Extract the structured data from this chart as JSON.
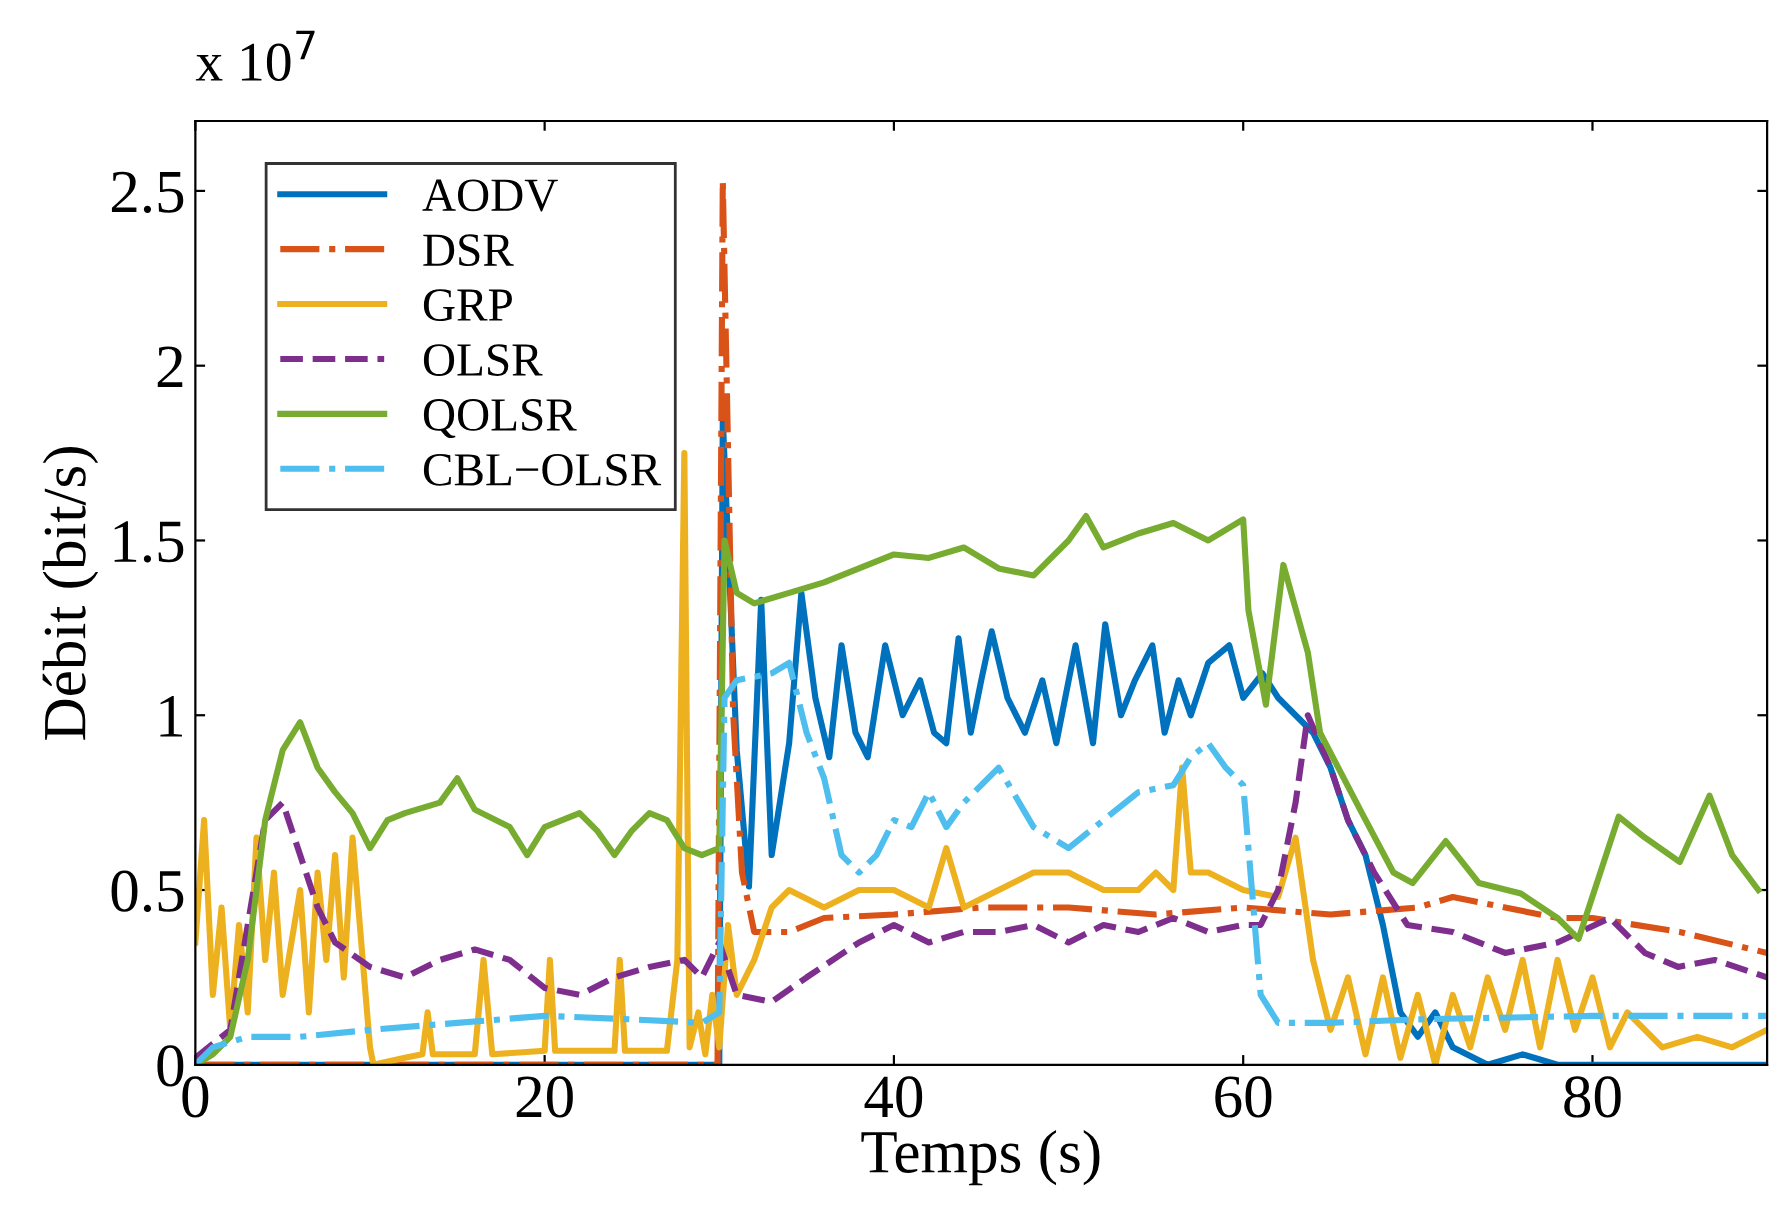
{
  "chart_data": {
    "type": "line",
    "xlabel": "Temps (s)",
    "ylabel": "Débit (bit/s)",
    "annotations": [
      "x 10$^{7}$"
    ],
    "xlim": [
      0,
      90
    ],
    "ylim": [
      0,
      2.7
    ],
    "xticks": [
      0,
      20,
      40,
      60,
      80
    ],
    "yticks": [
      0,
      0.5,
      1,
      1.5,
      2,
      2.5
    ],
    "grid": false,
    "legend": "top left",
    "series": [
      {
        "name": "AODV",
        "color": "#0072bd",
        "line_style": "solid",
        "x": [
          0,
          10,
          20,
          30,
          30.2,
          31,
          31.7,
          32.4,
          33,
          34,
          34.7,
          35.5,
          36.3,
          37,
          37.8,
          38.5,
          39.5,
          40.5,
          41.5,
          42.3,
          43,
          43.7,
          44.4,
          45,
          45.6,
          46.5,
          47.5,
          48.5,
          49.3,
          50.4,
          51.4,
          52.1,
          53,
          53.8,
          54.8,
          55.5,
          56.3,
          57,
          58,
          59.2,
          60,
          61.1,
          62,
          63,
          64,
          65,
          66,
          67,
          68,
          69,
          70,
          71,
          72,
          74,
          76,
          78,
          80,
          85,
          90
        ],
        "values": [
          0,
          0,
          0,
          0,
          1.85,
          0.9,
          0.51,
          1.33,
          0.6,
          0.92,
          1.35,
          1.05,
          0.88,
          1.2,
          0.95,
          0.88,
          1.2,
          1.0,
          1.1,
          0.95,
          0.92,
          1.22,
          0.95,
          1.1,
          1.24,
          1.05,
          0.95,
          1.1,
          0.92,
          1.2,
          0.92,
          1.26,
          1.0,
          1.1,
          1.2,
          0.95,
          1.1,
          1.0,
          1.15,
          1.2,
          1.05,
          1.12,
          1.05,
          1.0,
          0.95,
          0.85,
          0.7,
          0.6,
          0.4,
          0.15,
          0.08,
          0.15,
          0.05,
          0,
          0.03,
          0,
          0,
          0,
          0
        ]
      },
      {
        "name": "DSR",
        "color": "#d95319",
        "line_style": "dashdot",
        "x": [
          0,
          10,
          20,
          29.9,
          30.2,
          30.8,
          31.3,
          32,
          34,
          36,
          40,
          45,
          50,
          55,
          60,
          65,
          70,
          72,
          75,
          78,
          80,
          85,
          90
        ],
        "values": [
          0,
          0,
          0,
          0,
          2.53,
          1.0,
          0.55,
          0.38,
          0.38,
          0.42,
          0.43,
          0.45,
          0.45,
          0.43,
          0.45,
          0.43,
          0.45,
          0.48,
          0.45,
          0.42,
          0.42,
          0.38,
          0.32
        ]
      },
      {
        "name": "GRP",
        "color": "#edb120",
        "line_style": "solid",
        "x": [
          0,
          0.5,
          1,
          1.5,
          2,
          2.5,
          3,
          3.5,
          4,
          4.5,
          5,
          6,
          6.5,
          7,
          7.5,
          8,
          8.5,
          9,
          9.5,
          10,
          10.2,
          12,
          13,
          13.3,
          13.6,
          16,
          16.5,
          17,
          20,
          20.3,
          20.6,
          24,
          24.3,
          24.6,
          27,
          27.6,
          28,
          28.3,
          28.8,
          29.2,
          29.6,
          30,
          30.5,
          31,
          32,
          33,
          34,
          36,
          38,
          40,
          42,
          43,
          44,
          46,
          48,
          50,
          52,
          54,
          55,
          56,
          56.5,
          57,
          58,
          60,
          62,
          63,
          64,
          65,
          66,
          67,
          68,
          69,
          70,
          71,
          72,
          73,
          74,
          75,
          76,
          77,
          78,
          79,
          80,
          81,
          82,
          84,
          86,
          88,
          90
        ],
        "values": [
          0.35,
          0.7,
          0.2,
          0.45,
          0.1,
          0.4,
          0.15,
          0.65,
          0.3,
          0.55,
          0.2,
          0.5,
          0.15,
          0.55,
          0.3,
          0.6,
          0.25,
          0.65,
          0.35,
          0.05,
          0,
          0.02,
          0.03,
          0.15,
          0.03,
          0.03,
          0.3,
          0.03,
          0.04,
          0.3,
          0.04,
          0.04,
          0.3,
          0.04,
          0.04,
          0.3,
          1.75,
          0.05,
          0.15,
          0.03,
          0.2,
          0.05,
          0.4,
          0.2,
          0.3,
          0.45,
          0.5,
          0.45,
          0.5,
          0.5,
          0.45,
          0.62,
          0.45,
          0.5,
          0.55,
          0.55,
          0.5,
          0.5,
          0.55,
          0.5,
          0.85,
          0.55,
          0.55,
          0.5,
          0.48,
          0.65,
          0.3,
          0.1,
          0.25,
          0.03,
          0.25,
          0.02,
          0.2,
          0,
          0.2,
          0.05,
          0.25,
          0.1,
          0.3,
          0.05,
          0.3,
          0.1,
          0.25,
          0.05,
          0.15,
          0.05,
          0.08,
          0.05,
          0.1
        ]
      },
      {
        "name": "OLSR",
        "color": "#7e2f8e",
        "line_style": "dashed",
        "x": [
          0,
          2,
          3,
          4,
          5,
          6,
          7,
          8,
          10,
          12,
          14,
          16,
          18,
          20,
          22,
          24,
          26,
          28,
          29,
          30,
          31,
          33,
          35,
          38,
          40,
          42,
          44,
          46,
          48,
          50,
          52,
          54,
          56,
          58,
          60,
          61,
          62,
          63,
          63.7,
          65,
          66,
          67.5,
          69.4,
          72,
          75,
          78,
          81,
          83,
          84.9,
          87,
          90
        ],
        "values": [
          0.02,
          0.1,
          0.4,
          0.7,
          0.75,
          0.6,
          0.45,
          0.35,
          0.28,
          0.25,
          0.3,
          0.33,
          0.3,
          0.22,
          0.2,
          0.25,
          0.28,
          0.3,
          0.25,
          0.35,
          0.2,
          0.18,
          0.25,
          0.35,
          0.4,
          0.35,
          0.38,
          0.38,
          0.4,
          0.35,
          0.4,
          0.38,
          0.42,
          0.38,
          0.4,
          0.4,
          0.5,
          0.75,
          1.0,
          0.85,
          0.7,
          0.55,
          0.4,
          0.38,
          0.32,
          0.35,
          0.42,
          0.32,
          0.28,
          0.3,
          0.25
        ]
      },
      {
        "name": "QOLSR",
        "color": "#77ac30",
        "line_style": "solid",
        "x": [
          0,
          1,
          2,
          3,
          4,
          5,
          6,
          7,
          8,
          9,
          10,
          11,
          12,
          14,
          15,
          16,
          18,
          19,
          20,
          22,
          23,
          24,
          25,
          26,
          27,
          28,
          29,
          30,
          30.3,
          31,
          32,
          34,
          36,
          38,
          40,
          42,
          44,
          46,
          48,
          50,
          51,
          52,
          54,
          56,
          58,
          60,
          60.3,
          61.3,
          62.3,
          63.7,
          64.4,
          66.8,
          68.6,
          69.7,
          71.6,
          73.5,
          75.9,
          78,
          79.2,
          81.5,
          83,
          85,
          86.7,
          88,
          89.5
        ],
        "values": [
          0,
          0.03,
          0.08,
          0.3,
          0.7,
          0.9,
          0.98,
          0.85,
          0.78,
          0.72,
          0.62,
          0.7,
          0.72,
          0.75,
          0.82,
          0.73,
          0.68,
          0.6,
          0.68,
          0.72,
          0.67,
          0.6,
          0.67,
          0.72,
          0.7,
          0.62,
          0.6,
          0.62,
          1.5,
          1.35,
          1.32,
          1.35,
          1.38,
          1.42,
          1.46,
          1.45,
          1.48,
          1.42,
          1.4,
          1.5,
          1.57,
          1.48,
          1.52,
          1.55,
          1.5,
          1.56,
          1.3,
          1.03,
          1.43,
          1.18,
          0.95,
          0.72,
          0.55,
          0.52,
          0.64,
          0.52,
          0.49,
          0.42,
          0.36,
          0.71,
          0.65,
          0.58,
          0.77,
          0.6,
          0.5
        ]
      },
      {
        "name": "CBL−OLSR",
        "color": "#4dbeee",
        "line_style": "dashdot",
        "x": [
          0,
          1,
          3,
          6,
          10,
          15,
          20,
          25,
          29,
          30,
          30.3,
          31,
          33,
          34,
          35,
          36,
          37,
          38,
          39,
          40,
          41,
          42,
          43,
          44,
          45,
          46,
          48,
          50,
          52,
          54,
          56,
          57,
          58,
          59,
          60,
          60.5,
          61,
          62,
          65,
          70,
          80,
          90
        ],
        "values": [
          0,
          0.05,
          0.08,
          0.08,
          0.1,
          0.12,
          0.14,
          0.13,
          0.12,
          0.15,
          1.05,
          1.1,
          1.12,
          1.15,
          0.95,
          0.82,
          0.6,
          0.55,
          0.6,
          0.7,
          0.68,
          0.78,
          0.68,
          0.75,
          0.8,
          0.85,
          0.68,
          0.62,
          0.7,
          0.78,
          0.8,
          0.88,
          0.92,
          0.85,
          0.8,
          0.5,
          0.2,
          0.12,
          0.12,
          0.13,
          0.14,
          0.14
        ]
      }
    ]
  }
}
